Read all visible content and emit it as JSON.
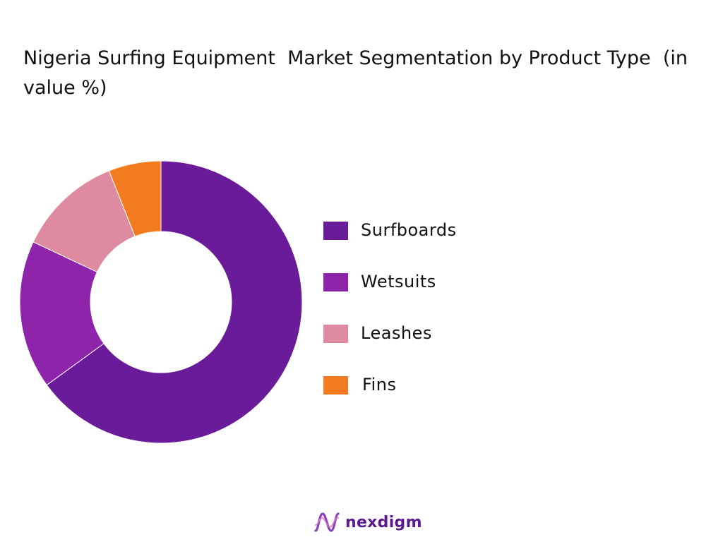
{
  "chart_data": {
    "type": "pie",
    "title": "Nigeria Surfing Equipment  Market Segmentation by Product Type  (in value %)",
    "categories": [
      "Surfboards",
      "Wetsuits",
      "Leashes",
      "Fins"
    ],
    "values": [
      65,
      17,
      12,
      6
    ],
    "colors": [
      "#6a1b9a",
      "#8e24aa",
      "#de8aa0",
      "#f47c20"
    ],
    "donut": true,
    "legend_placement": "right"
  },
  "brand": {
    "name": "nexdigm",
    "color": "#5b1a8f",
    "icon": "nexdigm-logo-icon"
  }
}
